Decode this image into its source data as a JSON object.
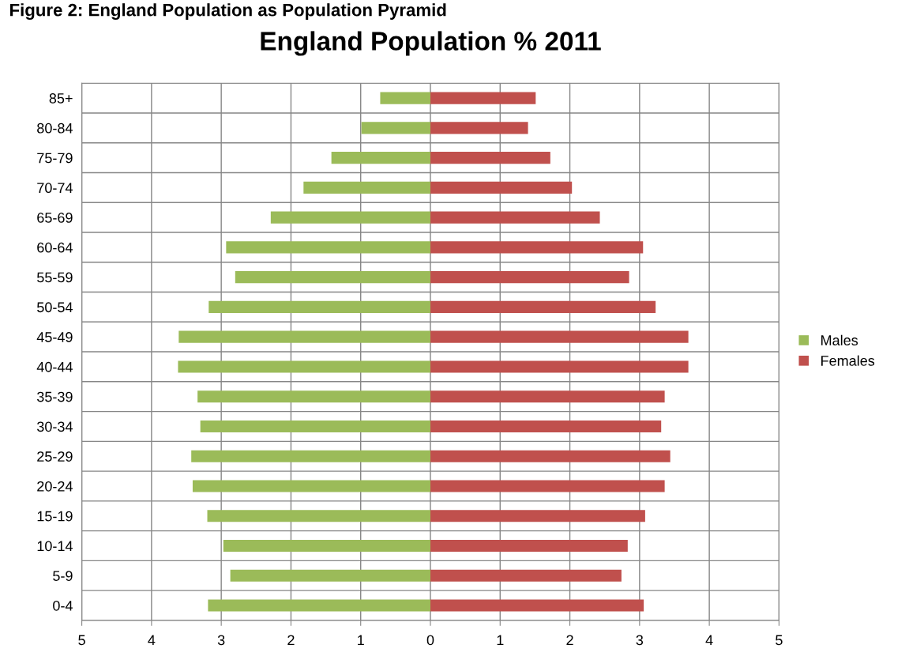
{
  "chart_data": {
    "type": "bar",
    "orientation": "horizontal",
    "stacked": true,
    "title": "England Population % 2011",
    "annotations": [
      "Figure 2: England Population as Population Pyramid"
    ],
    "categories": [
      "85+",
      "80-84",
      "75-79",
      "70-74",
      "65-69",
      "60-64",
      "55-59",
      "50-54",
      "45-49",
      "40-44",
      "35-39",
      "30-34",
      "25-29",
      "20-24",
      "15-19",
      "10-14",
      "5-9",
      "0-4"
    ],
    "series": [
      {
        "name": "Males",
        "color": "#9bbb59",
        "values": [
          -0.72,
          -0.99,
          -1.42,
          -1.82,
          -2.29,
          -2.93,
          -2.8,
          -3.18,
          -3.61,
          -3.62,
          -3.34,
          -3.3,
          -3.43,
          -3.41,
          -3.2,
          -2.97,
          -2.87,
          -3.19
        ]
      },
      {
        "name": "Females",
        "color": "#c0504d",
        "values": [
          1.51,
          1.4,
          1.72,
          2.03,
          2.43,
          3.05,
          2.85,
          3.23,
          3.7,
          3.7,
          3.36,
          3.31,
          3.44,
          3.36,
          3.08,
          2.83,
          2.74,
          3.06
        ]
      }
    ],
    "xlim": [
      -5,
      5
    ],
    "xticks": [
      {
        "value": -5,
        "label": "5"
      },
      {
        "value": -4,
        "label": "4"
      },
      {
        "value": -3,
        "label": "3"
      },
      {
        "value": -2,
        "label": "2"
      },
      {
        "value": -1,
        "label": "1"
      },
      0,
      1,
      2,
      3,
      4,
      5
    ],
    "grid": true,
    "legend": "right"
  }
}
